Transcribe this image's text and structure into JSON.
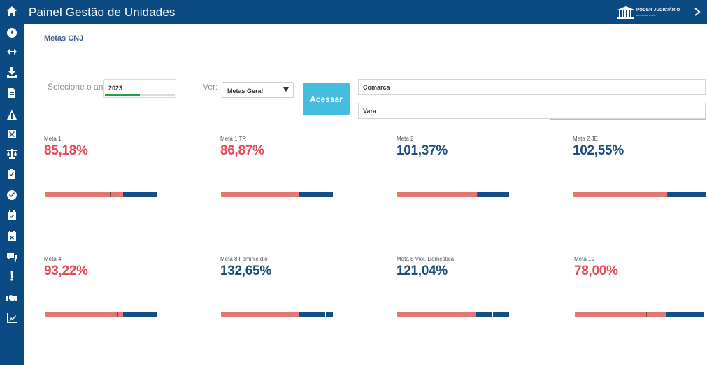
{
  "header": {
    "title": "Painel Gestão de Unidades",
    "brand_text": "PODER JUDICIÁRIO",
    "brand_sub": "ESTADO DE GOIÁS"
  },
  "breadcrumb": "Metas CNJ",
  "filters": {
    "ano_label": "Selecione o ano:",
    "ano_value": "2023",
    "ano_progress": 0.5,
    "ver_label": "Ver:",
    "ver_value": "Metas Geral",
    "acessar_label": "Acessar",
    "comarca_value": "Comarca",
    "vara_value": "Vara"
  },
  "colors": {
    "primary": "#0c4a83",
    "accent": "#45bde0",
    "red_value": "#e44a57",
    "blue_value": "#1c4f80",
    "bar_red": "#e27870",
    "bar_blue": "#0f4f8c"
  },
  "sidebar_icons": [
    "home-icon",
    "dashboard-icon",
    "arrows-horizontal-icon",
    "download-icon",
    "document-icon",
    "warning-icon",
    "close-box-icon",
    "scale-icon",
    "clipboard-check-icon",
    "check-circle-icon",
    "calendar-check-icon",
    "calendar-x-icon",
    "chat-icon",
    "exclamation-icon",
    "handshake-icon",
    "chart-line-icon"
  ],
  "metas": [
    {
      "name": "Meta 1",
      "value": "85,18%",
      "color": "red",
      "red_fraction": 0.7,
      "tick": 0.59
    },
    {
      "name": "Meta 1 TR",
      "value": "86,87%",
      "color": "red",
      "red_fraction": 0.7,
      "tick": 0.61
    },
    {
      "name": "Meta 2",
      "value": "101,37%",
      "color": "blue",
      "red_fraction": 0.71,
      "tick": 0.71
    },
    {
      "name": "Meta 2 JE",
      "value": "102,55%",
      "color": "blue",
      "red_fraction": 0.71,
      "tick": 0.71
    },
    {
      "name": "Meta 4",
      "value": "93,22%",
      "color": "red",
      "red_fraction": 0.7,
      "tick": 0.65
    },
    {
      "name": "Meta 8 Feminicídio",
      "value": "132,65%",
      "color": "blue",
      "red_fraction": 0.7,
      "tick": 0.93
    },
    {
      "name": "Meta 8 Viol. Doméstica",
      "value": "121,04%",
      "color": "blue",
      "red_fraction": 0.7,
      "tick": 0.85
    },
    {
      "name": "Meta 10",
      "value": "78,00%",
      "color": "red",
      "red_fraction": 0.7,
      "tick": 0.55
    }
  ]
}
